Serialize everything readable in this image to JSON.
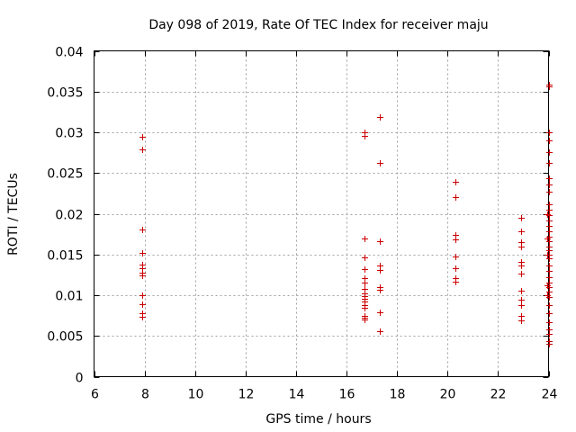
{
  "chart_data": {
    "type": "scatter",
    "title": "Day 098 of 2019, Rate Of TEC Index for receiver maju",
    "xlabel": "GPS time / hours",
    "ylabel": "ROTI / TECUs",
    "xlim": [
      6,
      24
    ],
    "ylim": [
      0,
      0.04
    ],
    "xticks": [
      6,
      8,
      10,
      12,
      14,
      16,
      18,
      20,
      22,
      24
    ],
    "xtick_labels": [
      "6",
      "8",
      "10",
      "12",
      "14",
      "16",
      "18",
      "20",
      "22",
      "24"
    ],
    "yticks": [
      0,
      0.005,
      0.01,
      0.015,
      0.02,
      0.025,
      0.03,
      0.035,
      0.04
    ],
    "ytick_labels": [
      "0",
      "0.005",
      "0.01",
      "0.015",
      "0.02",
      "0.025",
      "0.03",
      "0.035",
      "0.04"
    ],
    "grid": true,
    "marker": "+",
    "color": "#cc0000",
    "series": [
      {
        "name": "ROTI",
        "points": [
          [
            7.9,
            0.0294
          ],
          [
            7.9,
            0.0279
          ],
          [
            7.9,
            0.0181
          ],
          [
            7.9,
            0.0152
          ],
          [
            7.9,
            0.0138
          ],
          [
            7.9,
            0.0133
          ],
          [
            7.9,
            0.0128
          ],
          [
            7.9,
            0.0124
          ],
          [
            7.9,
            0.01
          ],
          [
            7.9,
            0.0089
          ],
          [
            7.9,
            0.0078
          ],
          [
            7.9,
            0.0074
          ],
          [
            16.7,
            0.03
          ],
          [
            16.7,
            0.0296
          ],
          [
            16.7,
            0.017
          ],
          [
            16.7,
            0.0146
          ],
          [
            16.7,
            0.0132
          ],
          [
            16.7,
            0.0121
          ],
          [
            16.7,
            0.0115
          ],
          [
            16.7,
            0.0108
          ],
          [
            16.7,
            0.0102
          ],
          [
            16.7,
            0.0099
          ],
          [
            16.7,
            0.0096
          ],
          [
            16.7,
            0.0092
          ],
          [
            16.7,
            0.0088
          ],
          [
            16.7,
            0.0085
          ],
          [
            16.7,
            0.0075
          ],
          [
            16.7,
            0.0072
          ],
          [
            16.7,
            0.007
          ],
          [
            17.3,
            0.0319
          ],
          [
            17.3,
            0.0262
          ],
          [
            17.3,
            0.0166
          ],
          [
            17.3,
            0.0137
          ],
          [
            17.3,
            0.0131
          ],
          [
            17.3,
            0.011
          ],
          [
            17.3,
            0.0107
          ],
          [
            17.3,
            0.0079
          ],
          [
            17.3,
            0.0056
          ],
          [
            20.3,
            0.0239
          ],
          [
            20.3,
            0.022
          ],
          [
            20.3,
            0.0174
          ],
          [
            20.3,
            0.0168
          ],
          [
            20.3,
            0.0147
          ],
          [
            20.3,
            0.0133
          ],
          [
            20.3,
            0.0121
          ],
          [
            20.3,
            0.0117
          ],
          [
            22.9,
            0.0195
          ],
          [
            22.9,
            0.0178
          ],
          [
            22.9,
            0.0165
          ],
          [
            22.9,
            0.016
          ],
          [
            22.9,
            0.0141
          ],
          [
            22.9,
            0.0137
          ],
          [
            22.9,
            0.0127
          ],
          [
            22.9,
            0.0105
          ],
          [
            22.9,
            0.0094
          ],
          [
            22.9,
            0.0088
          ],
          [
            22.9,
            0.0075
          ],
          [
            22.9,
            0.0069
          ],
          [
            24.0,
            0.0359
          ],
          [
            24.0,
            0.0356
          ],
          [
            24.0,
            0.03
          ],
          [
            24.0,
            0.029
          ],
          [
            24.0,
            0.0276
          ],
          [
            24.0,
            0.0262
          ],
          [
            24.0,
            0.0244
          ],
          [
            24.0,
            0.0236
          ],
          [
            24.0,
            0.0227
          ],
          [
            24.0,
            0.0212
          ],
          [
            24.0,
            0.0205
          ],
          [
            24.0,
            0.0198
          ],
          [
            24.0,
            0.0192
          ],
          [
            24.0,
            0.0185
          ],
          [
            24.0,
            0.0178
          ],
          [
            24.0,
            0.0172
          ],
          [
            24.0,
            0.0166
          ],
          [
            24.0,
            0.016
          ],
          [
            24.0,
            0.0155
          ],
          [
            24.0,
            0.015
          ],
          [
            24.0,
            0.0145
          ],
          [
            24.0,
            0.0137
          ],
          [
            24.0,
            0.013
          ],
          [
            24.0,
            0.0122
          ],
          [
            24.0,
            0.0115
          ],
          [
            24.0,
            0.011
          ],
          [
            24.0,
            0.0104
          ],
          [
            24.0,
            0.0098
          ],
          [
            24.0,
            0.0088
          ],
          [
            24.0,
            0.0078
          ],
          [
            24.0,
            0.0067
          ],
          [
            24.0,
            0.0058
          ],
          [
            24.0,
            0.0052
          ],
          [
            24.0,
            0.0044
          ],
          [
            24.0,
            0.004
          ],
          [
            23.95,
            0.02
          ],
          [
            23.95,
            0.017
          ],
          [
            23.95,
            0.015
          ],
          [
            23.95,
            0.0112
          ],
          [
            23.95,
            0.01
          ]
        ]
      }
    ]
  }
}
